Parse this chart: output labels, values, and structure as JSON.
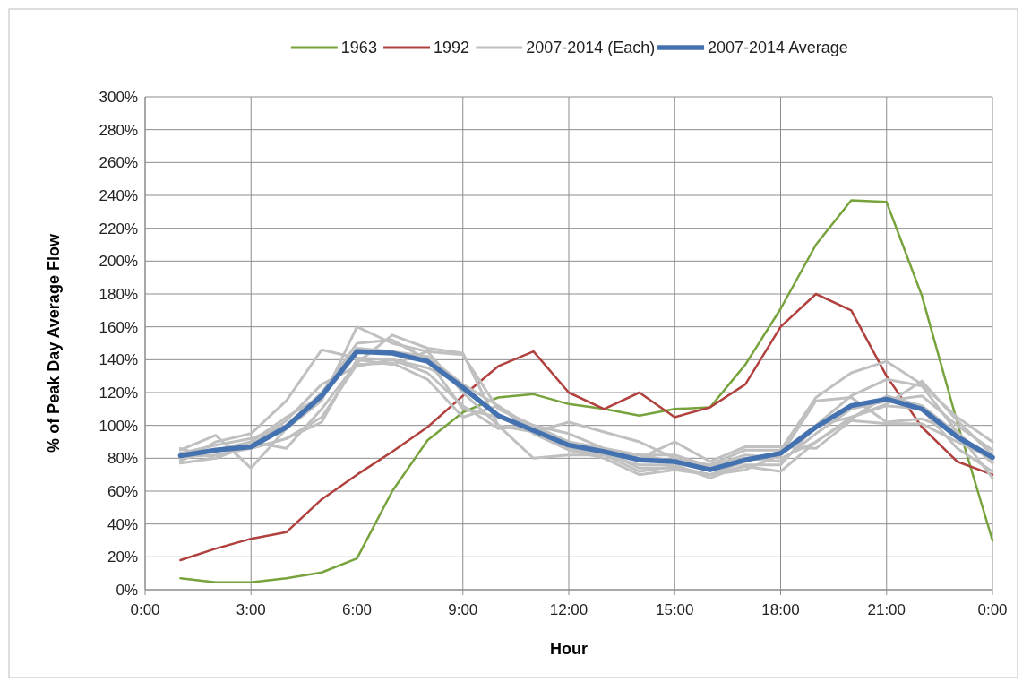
{
  "chart_data": {
    "type": "line",
    "xlabel": "Hour",
    "ylabel": "% of Peak Day Average Flow",
    "x": [
      1,
      2,
      3,
      4,
      5,
      6,
      7,
      8,
      9,
      10,
      11,
      12,
      13,
      14,
      15,
      16,
      17,
      18,
      19,
      20,
      21,
      22,
      23,
      24
    ],
    "xlim": [
      0,
      24
    ],
    "xticks": [
      {
        "value": 0,
        "label": "0:00"
      },
      {
        "value": 3,
        "label": "3:00"
      },
      {
        "value": 6,
        "label": "6:00"
      },
      {
        "value": 9,
        "label": "9:00"
      },
      {
        "value": 12,
        "label": "12:00"
      },
      {
        "value": 15,
        "label": "15:00"
      },
      {
        "value": 18,
        "label": "18:00"
      },
      {
        "value": 21,
        "label": "21:00"
      },
      {
        "value": 24,
        "label": "0:00"
      }
    ],
    "ylim": [
      0,
      300
    ],
    "yticks": [
      {
        "value": 0,
        "label": "0%"
      },
      {
        "value": 20,
        "label": "20%"
      },
      {
        "value": 40,
        "label": "40%"
      },
      {
        "value": 60,
        "label": "60%"
      },
      {
        "value": 80,
        "label": "80%"
      },
      {
        "value": 100,
        "label": "100%"
      },
      {
        "value": 120,
        "label": "120%"
      },
      {
        "value": 140,
        "label": "140%"
      },
      {
        "value": 160,
        "label": "160%"
      },
      {
        "value": 180,
        "label": "180%"
      },
      {
        "value": 200,
        "label": "200%"
      },
      {
        "value": 220,
        "label": "220%"
      },
      {
        "value": 240,
        "label": "240%"
      },
      {
        "value": 260,
        "label": "260%"
      },
      {
        "value": 280,
        "label": "280%"
      },
      {
        "value": 300,
        "label": "300%"
      }
    ],
    "grid": true,
    "legend": "top",
    "marker": "none",
    "line_style": "solid",
    "series": [
      {
        "name": "1963",
        "color": "#77a33d",
        "values": [
          7,
          4.5,
          4.5,
          7,
          10.5,
          19,
          60,
          91,
          108,
          117,
          119,
          113,
          110,
          106,
          110,
          111,
          137,
          171,
          210,
          237,
          236,
          179,
          102,
          30
        ]
      },
      {
        "name": "1992",
        "color": "#b0413e",
        "values": [
          18,
          25,
          31,
          35,
          55,
          70,
          84,
          99,
          118,
          136,
          145,
          120,
          110,
          120,
          105,
          111,
          125,
          160,
          180,
          170,
          130,
          99,
          78,
          70
        ]
      },
      {
        "name": "2007-2014 (Each)",
        "color": "#c0c0c0",
        "values": [
          78,
          90,
          95,
          115,
          146,
          141,
          140,
          135,
          125,
          105,
          98,
          90,
          86,
          82,
          82,
          75,
          80,
          78,
          95,
          110,
          115,
          118,
          100,
          85
        ]
      },
      {
        "color": "#c0c0c0",
        "values": [
          85,
          94,
          74,
          98,
          115,
          160,
          150,
          145,
          120,
          100,
          80,
          82,
          82,
          72,
          75,
          70,
          75,
          72,
          90,
          105,
          113,
          127,
          103,
          82
        ]
      },
      {
        "color": "#c0c0c0",
        "values": [
          77,
          80,
          90,
          86,
          110,
          138,
          155,
          147,
          144,
          100,
          96,
          102,
          96,
          90,
          80,
          76,
          85,
          85,
          117,
          132,
          139,
          125,
          105,
          90
        ]
      },
      {
        "color": "#c0c0c0",
        "values": [
          83,
          88,
          92,
          100,
          120,
          150,
          152,
          140,
          110,
          105,
          100,
          88,
          84,
          74,
          74,
          70,
          73,
          82,
          115,
          117,
          102,
          104,
          96,
          77
        ]
      },
      {
        "color": "#c0c0c0",
        "values": [
          80,
          85,
          86,
          92,
          105,
          137,
          138,
          128,
          105,
          112,
          95,
          85,
          80,
          70,
          73,
          70,
          78,
          84,
          100,
          118,
          128,
          124,
          96,
          68
        ]
      },
      {
        "color": "#c0c0c0",
        "values": [
          86,
          80,
          88,
          103,
          125,
          136,
          140,
          132,
          112,
          98,
          100,
          95,
          86,
          80,
          90,
          78,
          87,
          87,
          86,
          103,
          101,
          101,
          90,
          80
        ]
      },
      {
        "color": "#c0c0c0",
        "values": [
          79,
          85,
          90,
          105,
          118,
          147,
          145,
          142,
          125,
          112,
          98,
          86,
          82,
          76,
          76,
          68,
          76,
          76,
          100,
          105,
          112,
          110,
          86,
          72
        ]
      },
      {
        "color": "#c0c0c0",
        "values": [
          81,
          82,
          86,
          92,
          102,
          140,
          137,
          145,
          143,
          110,
          100,
          90,
          84,
          82,
          78,
          75,
          82,
          80,
          90,
          104,
          118,
          112,
          95,
          78
        ]
      },
      {
        "name": "2007-2014 Average",
        "color": "#4472b0",
        "values": [
          81.5,
          85,
          87,
          99,
          118,
          145,
          144,
          139,
          123,
          106,
          97,
          88,
          84,
          79,
          78,
          73,
          79,
          83,
          99,
          112,
          116,
          110,
          93,
          80.5
        ]
      }
    ]
  }
}
